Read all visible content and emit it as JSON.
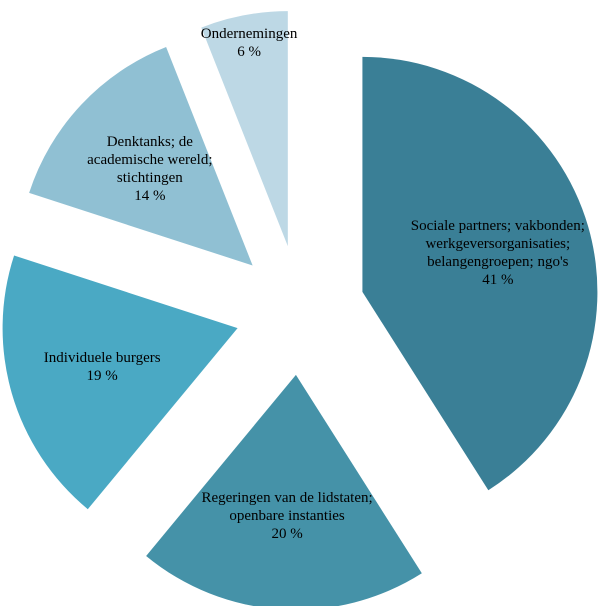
{
  "chart_data": {
    "type": "pie",
    "categories": [
      "Sociale partners; vakbonden; werkgeversorganisaties; belangengroepen; ngo's",
      "Regeringen van de lidstaten; openbare instanties",
      "Individuele burgers",
      "Denktanks; de academische wereld; stichtingen",
      "Ondernemingen"
    ],
    "values": [
      41,
      20,
      19,
      14,
      6
    ],
    "value_labels": [
      "41 %",
      "20 %",
      "19 %",
      "14 %",
      "6 %"
    ],
    "colors": [
      "#3a7f96",
      "#4592a8",
      "#4aa9c4",
      "#90c0d3",
      "#bdd8e5"
    ],
    "exploded": true
  }
}
